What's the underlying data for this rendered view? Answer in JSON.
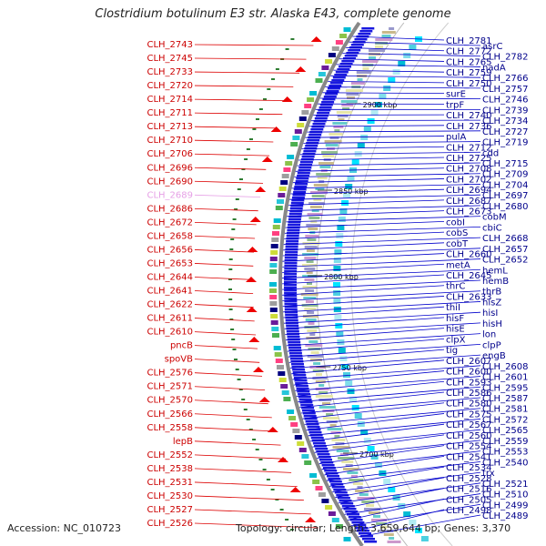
{
  "title": "Clostridium botulinum E3 str. Alaska E43, complete genome",
  "footer": {
    "accession": "Accession: NC_010723",
    "summary": "Topology: circular; Length: 3,659,644 bp; Genes: 3,370"
  },
  "colors": {
    "left_label": "#cc0000",
    "left_label_faint": "#e6a0e6",
    "right_label": "#00008b",
    "right_line": "#0000cc",
    "left_line": "#dd0000",
    "backbone": "#888888",
    "feature_blue": "#0000dd",
    "feature_red": "#ee0000"
  },
  "ruler": [
    "2900 kbp",
    "2850 kbp",
    "2800 kbp",
    "2750 kbp",
    "2700 kbp"
  ],
  "left_labels": [
    {
      "text": "CLH_2743"
    },
    {
      "text": "CLH_2745"
    },
    {
      "text": "CLH_2733"
    },
    {
      "text": "CLH_2720"
    },
    {
      "text": "CLH_2714"
    },
    {
      "text": "CLH_2711"
    },
    {
      "text": "CLH_2713"
    },
    {
      "text": "CLH_2710"
    },
    {
      "text": "CLH_2706"
    },
    {
      "text": "CLH_2696"
    },
    {
      "text": "CLH_2690"
    },
    {
      "text": "CLH_2689",
      "faint": true
    },
    {
      "text": "CLH_2686"
    },
    {
      "text": "CLH_2672"
    },
    {
      "text": "CLH_2658"
    },
    {
      "text": "CLH_2656"
    },
    {
      "text": "CLH_2653"
    },
    {
      "text": "CLH_2644"
    },
    {
      "text": "CLH_2641"
    },
    {
      "text": "CLH_2622"
    },
    {
      "text": "CLH_2611"
    },
    {
      "text": "CLH_2610"
    },
    {
      "text": "pncB"
    },
    {
      "text": "spoVB"
    },
    {
      "text": "CLH_2576"
    },
    {
      "text": "CLH_2571"
    },
    {
      "text": "CLH_2570"
    },
    {
      "text": "CLH_2566"
    },
    {
      "text": "CLH_2558"
    },
    {
      "text": "lepB"
    },
    {
      "text": "CLH_2552"
    },
    {
      "text": "CLH_2538"
    },
    {
      "text": "CLH_2531"
    },
    {
      "text": "CLH_2530"
    },
    {
      "text": "CLH_2527"
    },
    {
      "text": "CLH_2526"
    }
  ],
  "right_labels": [
    {
      "text": "CLH_2781"
    },
    {
      "text": "asrC"
    },
    {
      "text": "CLH_2772"
    },
    {
      "text": "CLH_2782"
    },
    {
      "text": "CLH_2765"
    },
    {
      "text": "nadA"
    },
    {
      "text": "CLH_2759"
    },
    {
      "text": "CLH_2766"
    },
    {
      "text": "CLH_2750"
    },
    {
      "text": "CLH_2757"
    },
    {
      "text": "surE"
    },
    {
      "text": "CLH_2746"
    },
    {
      "text": "trpF"
    },
    {
      "text": "CLH_2739"
    },
    {
      "text": "CLH_2740"
    },
    {
      "text": "CLH_2734"
    },
    {
      "text": "CLH_2736"
    },
    {
      "text": "CLH_2727"
    },
    {
      "text": "pulA"
    },
    {
      "text": "CLH_2719"
    },
    {
      "text": "CLH_2712"
    },
    {
      "text": "cdd"
    },
    {
      "text": "CLH_2725"
    },
    {
      "text": "CLH_2715"
    },
    {
      "text": "CLH_2708"
    },
    {
      "text": "CLH_2709"
    },
    {
      "text": "CLH_2702"
    },
    {
      "text": "CLH_2704"
    },
    {
      "text": "CLH_2694"
    },
    {
      "text": "CLH_2697"
    },
    {
      "text": "CLH_2687"
    },
    {
      "text": "CLH_2680"
    },
    {
      "text": "CLH_2673"
    },
    {
      "text": "cobM"
    },
    {
      "text": "cobI"
    },
    {
      "text": "cbiC"
    },
    {
      "text": "cobS"
    },
    {
      "text": "CLH_2668"
    },
    {
      "text": "cobT"
    },
    {
      "text": "CLH_2657"
    },
    {
      "text": "CLH_2660"
    },
    {
      "text": "CLH_2652"
    },
    {
      "text": "metA"
    },
    {
      "text": "hemL"
    },
    {
      "text": "CLH_2645"
    },
    {
      "text": "hemB"
    },
    {
      "text": "thrC"
    },
    {
      "text": "thrB"
    },
    {
      "text": "CLH_2633"
    },
    {
      "text": "hisZ"
    },
    {
      "text": "thiI"
    },
    {
      "text": "hisI"
    },
    {
      "text": "hisF"
    },
    {
      "text": "hisH"
    },
    {
      "text": "hisE"
    },
    {
      "text": "lon"
    },
    {
      "text": "clpX"
    },
    {
      "text": "clpP"
    },
    {
      "text": "tig"
    },
    {
      "text": "engB"
    },
    {
      "text": "CLH_2607"
    },
    {
      "text": "CLH_2608"
    },
    {
      "text": "CLH_2600"
    },
    {
      "text": "CLH_2601"
    },
    {
      "text": "CLH_2593"
    },
    {
      "text": "CLH_2595"
    },
    {
      "text": "CLH_2586"
    },
    {
      "text": "CLH_2587"
    },
    {
      "text": "CLH_2580"
    },
    {
      "text": "CLH_2581"
    },
    {
      "text": "CLH_2575"
    },
    {
      "text": "CLH_2572"
    },
    {
      "text": "CLH_2567"
    },
    {
      "text": "CLH_2565"
    },
    {
      "text": "CLH_2560"
    },
    {
      "text": "CLH_2559"
    },
    {
      "text": "CLH_2554"
    },
    {
      "text": "CLH_2553"
    },
    {
      "text": "CLH_2541"
    },
    {
      "text": "CLH_2540"
    },
    {
      "text": "CLH_2534"
    },
    {
      "text": "trx"
    },
    {
      "text": "CLH_2528"
    },
    {
      "text": "CLH_2521"
    },
    {
      "text": "CLH_2516"
    },
    {
      "text": "CLH_2510"
    },
    {
      "text": "CLH_2505"
    },
    {
      "text": "CLH_2499"
    },
    {
      "text": "CLH_2498"
    },
    {
      "text": "CLH_2489"
    }
  ]
}
